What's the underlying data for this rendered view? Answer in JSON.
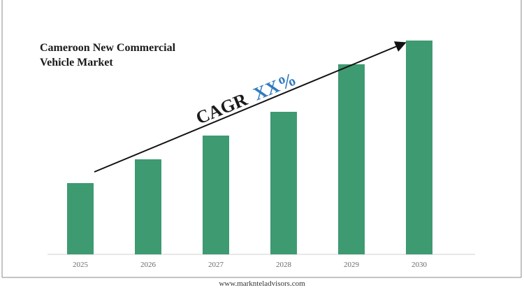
{
  "colors": {
    "bar": "#3e9a71",
    "text": "#1a1a1a",
    "cagr_value": "#2f7bbf",
    "axis": "#d0d0d0",
    "border": "#8a8a8a"
  },
  "chart_data": {
    "type": "bar",
    "title": [
      "Cameroon New Commercial",
      "Vehicle Market"
    ],
    "categories": [
      "2025",
      "2026",
      "2027",
      "2028",
      "2029",
      "2030"
    ],
    "values": [
      30,
      40,
      50,
      60,
      80,
      90
    ],
    "ylim": [
      0,
      100
    ],
    "grid": false,
    "annotation": {
      "label": "CAGR",
      "value": "XX%"
    }
  },
  "footer": {
    "url": "www.marknteladvisors.com"
  }
}
